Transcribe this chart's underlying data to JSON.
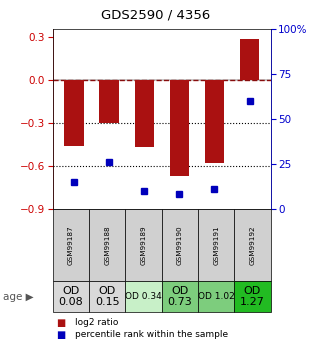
{
  "title": "GDS2590 / 4356",
  "samples": [
    "GSM99187",
    "GSM99188",
    "GSM99189",
    "GSM99190",
    "GSM99191",
    "GSM99192"
  ],
  "log2_ratio": [
    -0.46,
    -0.3,
    -0.47,
    -0.67,
    -0.58,
    0.28
  ],
  "percentile_rank": [
    15,
    26,
    10,
    8,
    11,
    60
  ],
  "age_labels": [
    "OD\n0.08",
    "OD\n0.15",
    "OD 0.34",
    "OD\n0.73",
    "OD 1.02",
    "OD\n1.27"
  ],
  "age_fontsize": [
    8,
    8,
    6.5,
    8,
    6.5,
    8
  ],
  "cell_colors": [
    "#d9d9d9",
    "#d9d9d9",
    "#c8f0c8",
    "#7dcd7d",
    "#7dcd7d",
    "#22bb22"
  ],
  "gsm_color": "#d0d0d0",
  "bar_color": "#aa1111",
  "dot_color": "#0000bb",
  "ylim_left": [
    -0.9,
    0.35
  ],
  "ylim_right": [
    0,
    100
  ],
  "yticks_left": [
    -0.9,
    -0.6,
    -0.3,
    0.0,
    0.3
  ],
  "yticks_right": [
    0,
    25,
    50,
    75,
    100
  ],
  "ytick_labels_right": [
    "0",
    "25",
    "50",
    "75",
    "100%"
  ],
  "hline_y": 0.0,
  "dotted_lines": [
    -0.3,
    -0.6
  ],
  "legend_items": [
    "log2 ratio",
    "percentile rank within the sample"
  ],
  "bar_width": 0.55
}
